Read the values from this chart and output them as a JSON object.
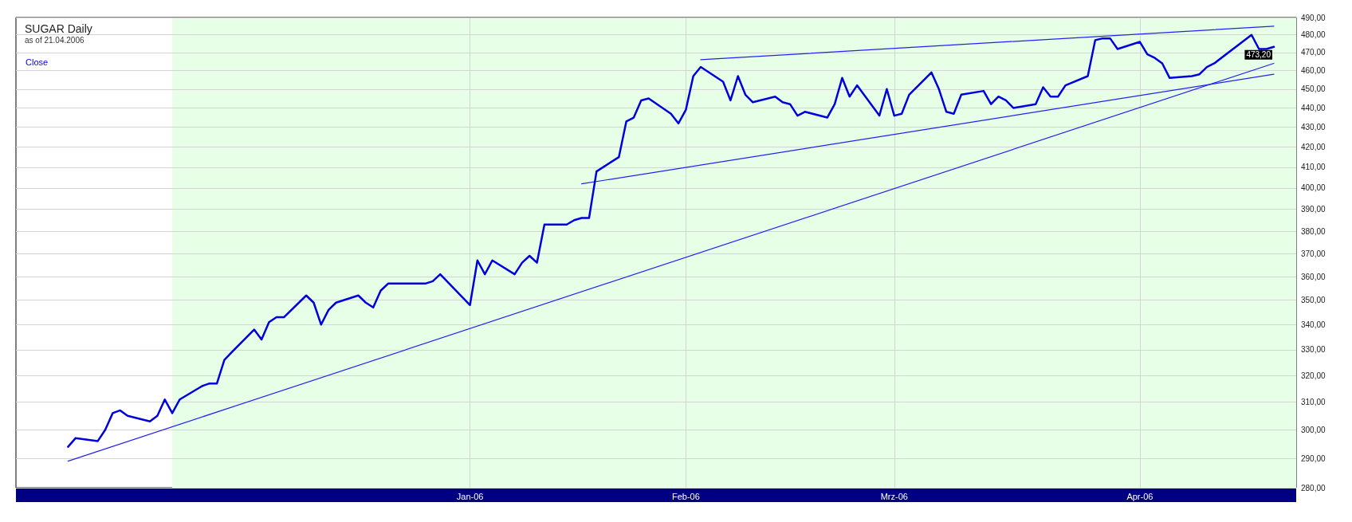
{
  "chart_data": {
    "type": "line",
    "title": "SUGAR Daily",
    "subtitle": "as of 21.04.2006",
    "x": [
      "2005-11-10",
      "2005-11-11",
      "2005-11-14",
      "2005-11-15",
      "2005-11-16",
      "2005-11-17",
      "2005-11-18",
      "2005-11-21",
      "2005-11-22",
      "2005-11-23",
      "2005-11-24",
      "2005-11-25",
      "2005-11-28",
      "2005-11-29",
      "2005-11-30",
      "2005-12-01",
      "2005-12-02",
      "2005-12-05",
      "2005-12-06",
      "2005-12-07",
      "2005-12-08",
      "2005-12-09",
      "2005-12-12",
      "2005-12-13",
      "2005-12-14",
      "2005-12-15",
      "2005-12-16",
      "2005-12-19",
      "2005-12-20",
      "2005-12-21",
      "2005-12-22",
      "2005-12-23",
      "2005-12-28",
      "2005-12-29",
      "2005-12-30",
      "2006-01-03",
      "2006-01-04",
      "2006-01-05",
      "2006-01-06",
      "2006-01-09",
      "2006-01-10",
      "2006-01-11",
      "2006-01-12",
      "2006-01-13",
      "2006-01-16",
      "2006-01-17",
      "2006-01-18",
      "2006-01-19",
      "2006-01-20",
      "2006-01-23",
      "2006-01-24",
      "2006-01-25",
      "2006-01-26",
      "2006-01-27",
      "2006-01-30",
      "2006-01-31",
      "2006-02-01",
      "2006-02-02",
      "2006-02-03",
      "2006-02-06",
      "2006-02-07",
      "2006-02-08",
      "2006-02-09",
      "2006-02-10",
      "2006-02-13",
      "2006-02-14",
      "2006-02-15",
      "2006-02-16",
      "2006-02-17",
      "2006-02-20",
      "2006-02-21",
      "2006-02-22",
      "2006-02-23",
      "2006-02-24",
      "2006-02-27",
      "2006-02-28",
      "2006-03-01",
      "2006-03-02",
      "2006-03-03",
      "2006-03-06",
      "2006-03-07",
      "2006-03-08",
      "2006-03-09",
      "2006-03-10",
      "2006-03-13",
      "2006-03-14",
      "2006-03-15",
      "2006-03-16",
      "2006-03-17",
      "2006-03-20",
      "2006-03-21",
      "2006-03-22",
      "2006-03-23",
      "2006-03-24",
      "2006-03-27",
      "2006-03-28",
      "2006-03-29",
      "2006-03-30",
      "2006-03-31",
      "2006-04-03",
      "2006-04-04",
      "2006-04-05",
      "2006-04-06",
      "2006-04-07",
      "2006-04-10",
      "2006-04-11",
      "2006-04-12",
      "2006-04-13",
      "2006-04-18",
      "2006-04-19",
      "2006-04-20",
      "2006-04-21"
    ],
    "series": [
      {
        "name": "Close",
        "color": "#0000dd",
        "values": [
          294,
          297,
          296,
          300,
          306,
          307,
          305,
          303,
          305,
          311,
          306,
          311,
          316,
          317,
          317,
          326,
          329,
          338,
          334,
          341,
          343,
          343,
          352,
          349,
          340,
          346,
          349,
          352,
          349,
          347,
          354,
          357,
          357,
          358,
          361,
          348,
          367,
          361,
          367,
          361,
          366,
          369,
          366,
          383,
          383,
          385,
          386,
          386,
          408,
          415,
          433,
          435,
          444,
          445,
          437,
          432,
          439,
          457,
          462,
          454,
          444,
          457,
          447,
          443,
          446,
          443,
          442,
          436,
          438,
          435,
          442,
          456,
          446,
          452,
          436,
          450,
          436,
          437,
          447,
          459,
          450,
          438,
          437,
          447,
          449,
          442,
          446,
          444,
          440,
          442,
          451,
          446,
          446,
          452,
          457,
          477,
          478,
          478,
          472,
          476,
          469,
          467,
          464,
          456,
          457,
          458,
          462,
          464,
          480,
          472,
          472,
          473.2
        ]
      },
      {
        "type": "line",
        "color": "#2222ee",
        "x": [
          "2005-11-10",
          "2006-04-21"
        ],
        "values": [
          289,
          464
        ]
      },
      {
        "type": "line",
        "color": "#2222ee",
        "x": [
          "2006-01-18",
          "2006-04-21"
        ],
        "values": [
          402,
          458
        ]
      },
      {
        "type": "line",
        "color": "#2222ee",
        "x": [
          "2006-02-03",
          "2006-04-21"
        ],
        "values": [
          466,
          485
        ]
      }
    ],
    "log": true,
    "ylim": [
      280,
      490
    ],
    "yticks": [
      {
        "value": 280,
        "label": "280,00"
      },
      {
        "value": 290,
        "label": "290,00"
      },
      {
        "value": 300,
        "label": "300,00"
      },
      {
        "value": 310,
        "label": "310,00"
      },
      {
        "value": 320,
        "label": "320,00"
      },
      {
        "value": 330,
        "label": "330,00"
      },
      {
        "value": 340,
        "label": "340,00"
      },
      {
        "value": 350,
        "label": "350,00"
      },
      {
        "value": 360,
        "label": "360,00"
      },
      {
        "value": 370,
        "label": "370,00"
      },
      {
        "value": 380,
        "label": "380,00"
      },
      {
        "value": 390,
        "label": "390,00"
      },
      {
        "value": 400,
        "label": "400,00"
      },
      {
        "value": 410,
        "label": "410,00"
      },
      {
        "value": 420,
        "label": "420,00"
      },
      {
        "value": 430,
        "label": "430,00"
      },
      {
        "value": 440,
        "label": "440,00"
      },
      {
        "value": 450,
        "label": "450,00"
      },
      {
        "value": 460,
        "label": "460,00"
      },
      {
        "value": 470,
        "label": "470,00"
      },
      {
        "value": 480,
        "label": "480,00"
      },
      {
        "value": 490,
        "label": "490,00"
      }
    ],
    "xlim": [
      "2005-11-03",
      "2006-04-24"
    ],
    "xticks": [
      {
        "value": "2006-01-03",
        "label": "Jan-06"
      },
      {
        "value": "2006-02-01",
        "label": "Feb-06"
      },
      {
        "value": "2006-03-01",
        "label": "Mrz-06"
      },
      {
        "value": "2006-04-03",
        "label": "Apr-06"
      }
    ],
    "grid": true,
    "legend": "top left",
    "marker": "none",
    "line_style": "solid",
    "bands": [
      {
        "axis": "x",
        "from": "2005-11-24",
        "to": "2006-04-24",
        "color": "#e6ffe6"
      }
    ],
    "annotations": [
      {
        "text": "473,20",
        "x": "2006-04-21",
        "y": 473.2
      }
    ]
  }
}
